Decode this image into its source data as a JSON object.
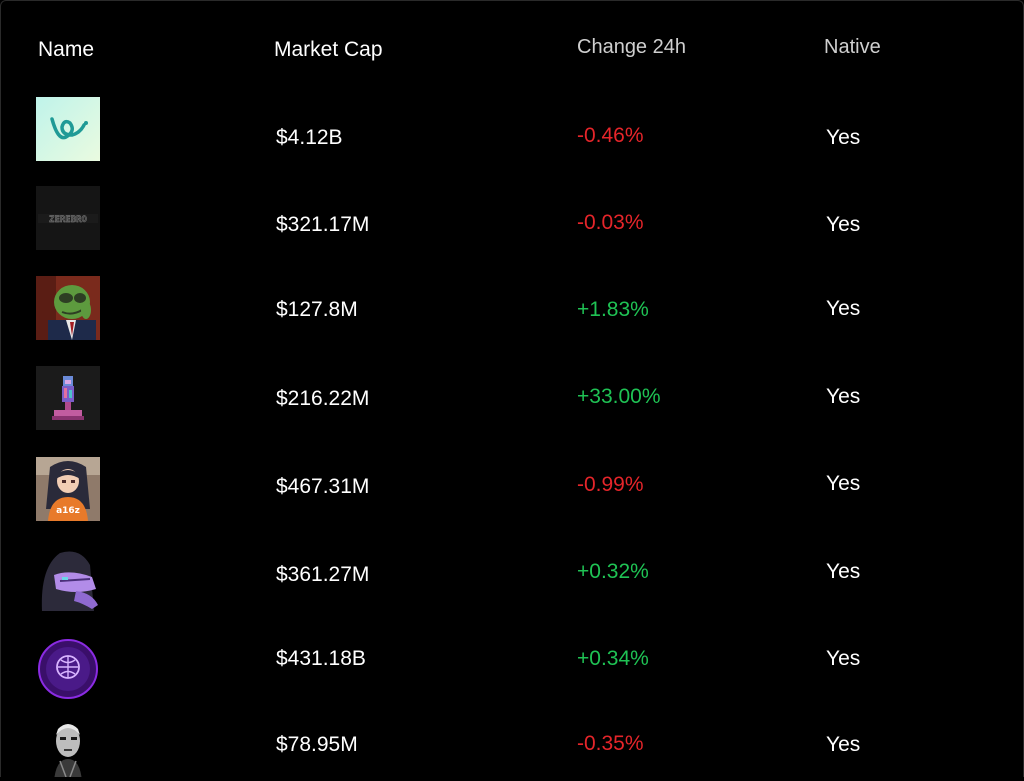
{
  "table": {
    "headers": {
      "name": "Name",
      "market_cap": "Market Cap",
      "change_24h": "Change 24h",
      "native": "Native"
    },
    "rows": [
      {
        "logo": "teal-swirl-logo-icon",
        "market_cap": "$4.12B",
        "change": "-0.46%",
        "direction": "negative",
        "native": "Yes"
      },
      {
        "logo": "dark-text-logo-icon",
        "market_cap": "$321.17M",
        "change": "-0.03%",
        "direction": "negative",
        "native": "Yes"
      },
      {
        "logo": "green-frog-suit-avatar-icon",
        "market_cap": "$127.8M",
        "change": "+1.83%",
        "direction": "positive",
        "native": "Yes"
      },
      {
        "logo": "pixel-bust-statue-icon",
        "market_cap": "$216.22M",
        "change": "+33.00%",
        "direction": "positive",
        "native": "Yes"
      },
      {
        "logo": "anime-girl-avatar-icon",
        "market_cap": "$467.31M",
        "change": "-0.99%",
        "direction": "negative",
        "native": "Yes"
      },
      {
        "logo": "purple-hooded-creature-icon",
        "market_cap": "$361.27M",
        "change": "+0.32%",
        "direction": "positive",
        "native": "Yes"
      },
      {
        "logo": "purple-brain-circle-icon",
        "market_cap": "$431.18B",
        "change": "+0.34%",
        "direction": "positive",
        "native": "Yes"
      },
      {
        "logo": "monochrome-face-icon",
        "market_cap": "$78.95M",
        "change": "-0.35%",
        "direction": "negative",
        "native": "Yes"
      }
    ]
  },
  "colors": {
    "background": "#000000",
    "negative": "#e5252a",
    "positive": "#1fc254",
    "text": "#ffffff",
    "header_muted": "#cfcfcf"
  }
}
